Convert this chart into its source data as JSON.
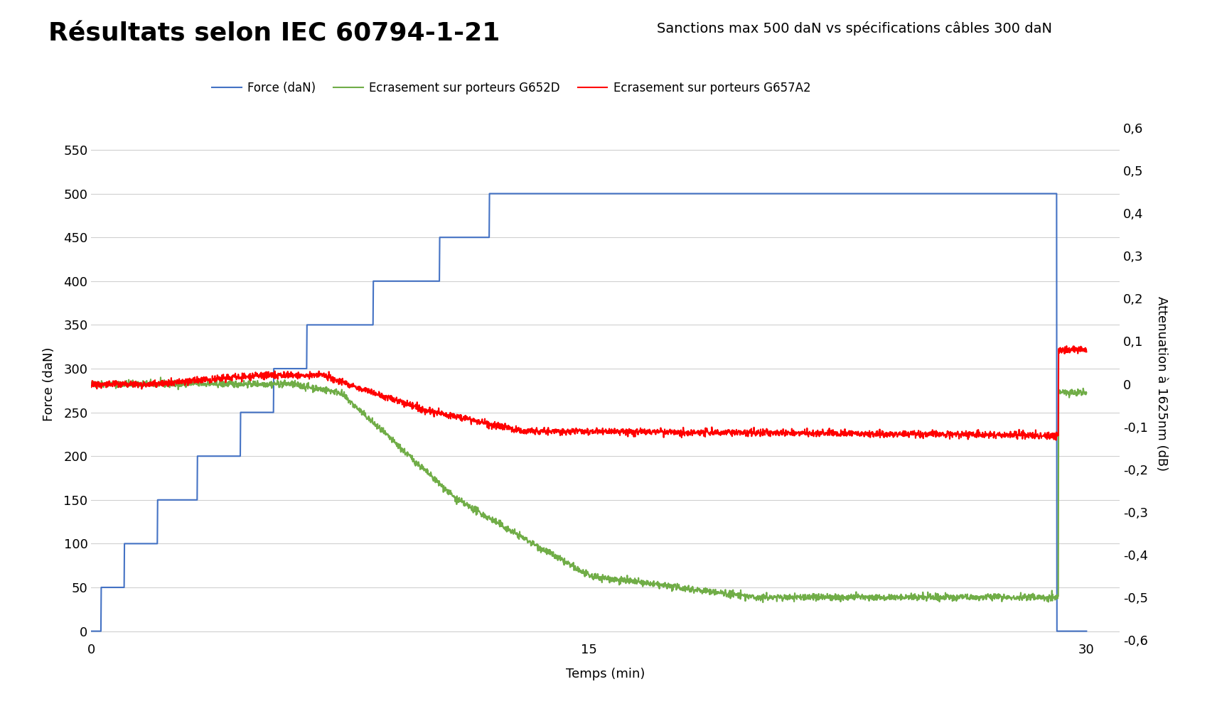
{
  "title": "Résultats selon IEC 60794-1-21",
  "subtitle": "Sanctions max 500 daN vs spécifications câbles 300 daN",
  "xlabel": "Temps (min)",
  "ylabel_left": "Force (daN)",
  "ylabel_right": "Attenuation à 1625nm (dB)",
  "legend_force": "Force (daN)",
  "legend_g652d": "Ecrasement sur porteurs G652D",
  "legend_g657a2": "Ecrasement sur porteurs G657A2",
  "color_force": "#4472C4",
  "color_g652d": "#70AD47",
  "color_g657a2": "#FF0000",
  "xlim": [
    0,
    31
  ],
  "ylim_left": [
    -10,
    575
  ],
  "ylim_right": [
    -0.6,
    0.6
  ],
  "xticks": [
    0,
    15,
    30
  ],
  "yticks_left": [
    0,
    50,
    100,
    150,
    200,
    250,
    300,
    350,
    400,
    450,
    500,
    550
  ],
  "yticks_right": [
    -0.6,
    -0.5,
    -0.4,
    -0.3,
    -0.2,
    -0.1,
    0,
    0.1,
    0.2,
    0.3,
    0.4,
    0.5,
    0.6
  ],
  "background_color": "#FFFFFF",
  "grid_color": "#D0D0D0",
  "title_fontsize": 26,
  "subtitle_fontsize": 14,
  "legend_fontsize": 12,
  "axis_label_fontsize": 13,
  "tick_fontsize": 13
}
